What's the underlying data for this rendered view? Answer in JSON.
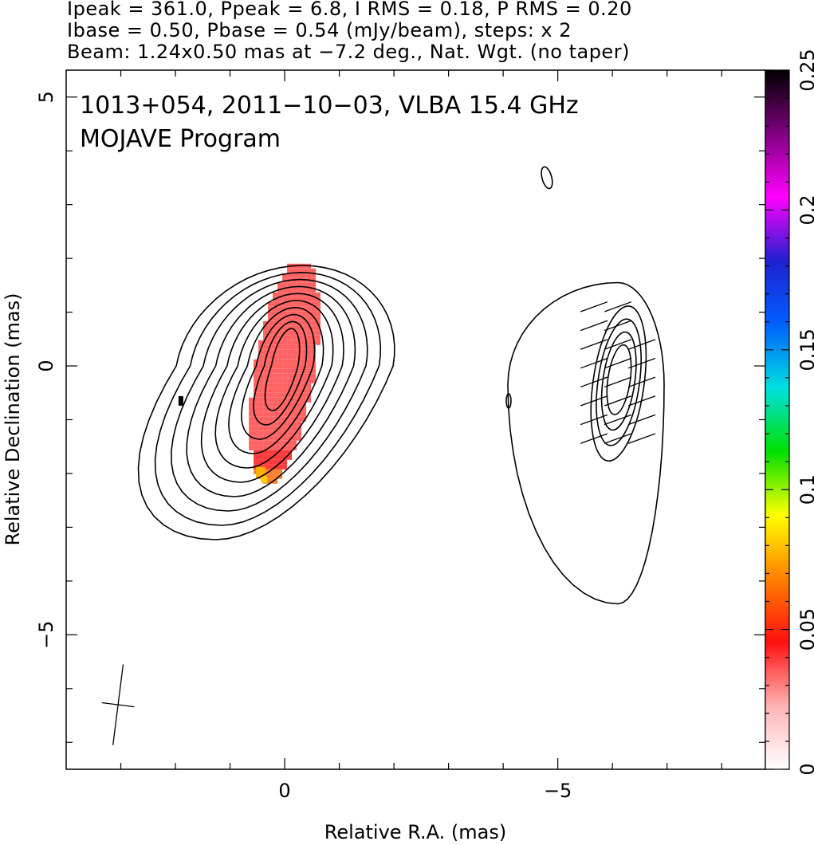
{
  "header": {
    "line1": "Ipeak = 361.0, Ppeak = 6.8, I RMS = 0.18, P RMS = 0.20",
    "line2": "Ibase = 0.50, Pbase = 0.54 (mJy/beam), steps: x 2",
    "line3": "Beam: 1.24x0.50 mas at −7.2 deg., Nat. Wgt. (no taper)"
  },
  "overlay": {
    "source_line": "1013+054, 2011−10−03, VLBA 15.4 GHz",
    "program_line": "MOJAVE Program"
  },
  "chart_data": {
    "type": "heatmap",
    "title": "1013+054, 2011−10−03, VLBA 15.4 GHz",
    "subtitle": "MOJAVE Program",
    "xlabel": "Relative R.A. (mas)",
    "ylabel": "Relative Declination (mas)",
    "xlim": [
      4.0,
      -8.8
    ],
    "ylim": [
      -7.5,
      5.5
    ],
    "x_ticks": [
      {
        "value": 0,
        "label": "0"
      },
      {
        "value": -5,
        "label": "−5"
      }
    ],
    "y_ticks": [
      {
        "value": 5,
        "label": "5"
      },
      {
        "value": 0,
        "label": "0"
      },
      {
        "value": -5,
        "label": "−5"
      }
    ],
    "colorbar": {
      "range": [
        0,
        0.25
      ],
      "ticks": [
        {
          "value": 0,
          "label": "0"
        },
        {
          "value": 0.05,
          "label": "0.05"
        },
        {
          "value": 0.1,
          "label": "0.1"
        },
        {
          "value": 0.15,
          "label": "0.15"
        },
        {
          "value": 0.2,
          "label": "0.2"
        },
        {
          "value": 0.25,
          "label": "0.25"
        }
      ],
      "colors": [
        "#ffffff",
        "#ffb3b3",
        "#ff1010",
        "#ff8000",
        "#ffff00",
        "#00e000",
        "#00e0e0",
        "#0060ff",
        "#2020d0",
        "#ff00ff",
        "#800080",
        "#000000"
      ]
    },
    "stokes_I_contours": {
      "center": [
        0.0,
        0.0
      ],
      "levels_relative": [
        1,
        2,
        4,
        8,
        16,
        32,
        64,
        128,
        256,
        512
      ],
      "base_mJy_per_beam": 0.5,
      "peak_mJy_per_beam": 361.0
    },
    "fractional_polarization_patch": {
      "center": [
        0.0,
        -0.1
      ],
      "value_range": [
        0.03,
        0.09
      ],
      "dominant_color": "#ff6060"
    },
    "polarized_intensity_contours": {
      "center": [
        -6.1,
        -0.2
      ],
      "levels_relative": [
        1,
        2,
        4,
        8,
        16
      ],
      "base_mJy_per_beam": 0.54,
      "peak_mJy_per_beam": 6.8
    },
    "evpa_sticks": {
      "angle_deg_from_x": 20,
      "rows_y": [
        1.1,
        0.75,
        0.4,
        0.05,
        -0.3,
        -0.65,
        -1.0,
        -1.35
      ]
    },
    "isolated_features": [
      {
        "kind": "I-contour",
        "position": [
          -4.8,
          3.5
        ]
      },
      {
        "kind": "P-contour",
        "position": [
          -4.1,
          -0.65
        ]
      },
      {
        "kind": "marker",
        "position": [
          1.9,
          -0.65
        ]
      }
    ],
    "beam": {
      "major_mas": 1.24,
      "minor_mas": 0.5,
      "pa_deg": -7.2,
      "position": [
        3.05,
        -6.3
      ]
    }
  }
}
